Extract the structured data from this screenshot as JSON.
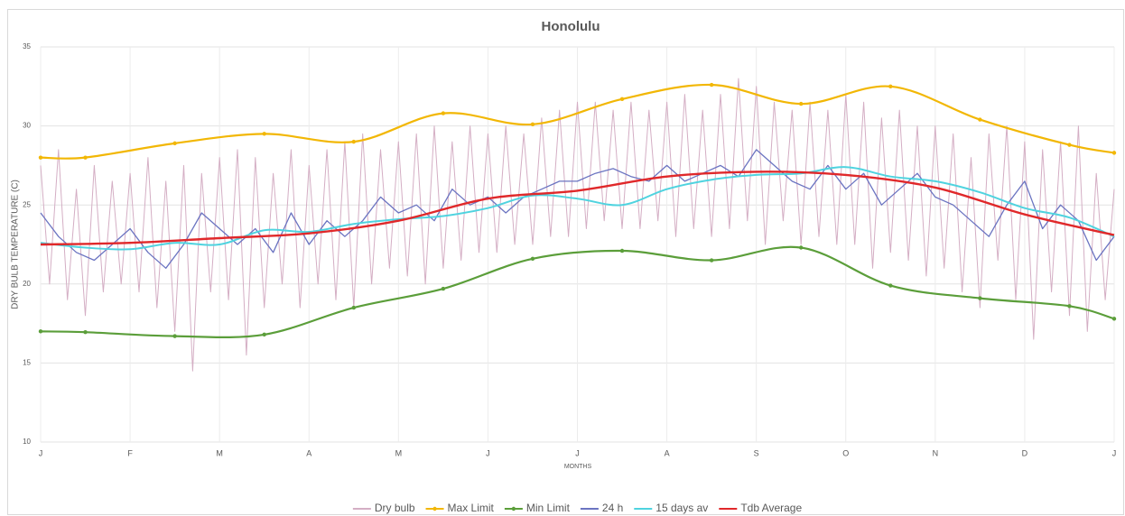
{
  "chart_data": {
    "type": "line",
    "title": "Honolulu",
    "ylabel": "DRY BULB TEMPERATURE (C)",
    "xlabel": "MONTHS",
    "xlim": [
      0,
      12
    ],
    "xticks": [
      {
        "value": 0,
        "label": "J"
      },
      {
        "value": 1,
        "label": "F"
      },
      {
        "value": 2,
        "label": "M"
      },
      {
        "value": 3,
        "label": "A"
      },
      {
        "value": 4,
        "label": "M"
      },
      {
        "value": 5,
        "label": "J"
      },
      {
        "value": 6,
        "label": "J"
      },
      {
        "value": 7,
        "label": "A"
      },
      {
        "value": 8,
        "label": "S"
      },
      {
        "value": 9,
        "label": "O"
      },
      {
        "value": 10,
        "label": "N"
      },
      {
        "value": 11,
        "label": "D"
      },
      {
        "value": 12,
        "label": "J"
      }
    ],
    "ylim": [
      10,
      35
    ],
    "yticks": [
      10,
      15,
      20,
      25,
      30,
      35
    ],
    "grid": true,
    "legend": "bottom",
    "series": [
      {
        "name": "Dry bulb",
        "color": "#d4aec4",
        "width": 1,
        "smooth": false,
        "markers": false,
        "x": [
          0,
          0.1,
          0.2,
          0.3,
          0.4,
          0.5,
          0.6,
          0.7,
          0.8,
          0.9,
          1,
          1.1,
          1.2,
          1.3,
          1.4,
          1.5,
          1.6,
          1.7,
          1.8,
          1.9,
          2,
          2.1,
          2.2,
          2.3,
          2.4,
          2.5,
          2.6,
          2.7,
          2.8,
          2.9,
          3,
          3.1,
          3.2,
          3.3,
          3.4,
          3.5,
          3.6,
          3.7,
          3.8,
          3.9,
          4,
          4.1,
          4.2,
          4.3,
          4.4,
          4.5,
          4.6,
          4.7,
          4.8,
          4.9,
          5,
          5.1,
          5.2,
          5.3,
          5.4,
          5.5,
          5.6,
          5.7,
          5.8,
          5.9,
          6,
          6.1,
          6.2,
          6.3,
          6.4,
          6.5,
          6.6,
          6.7,
          6.8,
          6.9,
          7,
          7.1,
          7.2,
          7.3,
          7.4,
          7.5,
          7.6,
          7.7,
          7.8,
          7.9,
          8,
          8.1,
          8.2,
          8.3,
          8.4,
          8.5,
          8.6,
          8.7,
          8.8,
          8.9,
          9,
          9.1,
          9.2,
          9.3,
          9.4,
          9.5,
          9.6,
          9.7,
          9.8,
          9.9,
          10,
          10.1,
          10.2,
          10.3,
          10.4,
          10.5,
          10.6,
          10.7,
          10.8,
          10.9,
          11,
          11.1,
          11.2,
          11.3,
          11.4,
          11.5,
          11.6,
          11.7,
          11.8,
          11.9,
          12
        ],
        "values": [
          27.5,
          20.0,
          28.5,
          19.0,
          26.0,
          18.0,
          27.5,
          19.5,
          26.5,
          20.0,
          27.0,
          19.5,
          28.0,
          18.5,
          26.5,
          17.0,
          27.5,
          14.5,
          27.0,
          19.5,
          28.0,
          19.0,
          28.5,
          15.5,
          28.0,
          18.5,
          27.0,
          20.0,
          28.5,
          18.5,
          27.5,
          20.0,
          28.5,
          19.0,
          29.0,
          18.5,
          29.5,
          20.0,
          28.5,
          21.0,
          29.0,
          20.5,
          29.5,
          20.0,
          30.0,
          21.0,
          29.0,
          21.5,
          30.0,
          22.0,
          29.5,
          22.0,
          30.0,
          22.5,
          29.5,
          22.5,
          30.5,
          23.0,
          31.0,
          23.0,
          31.5,
          23.5,
          31.5,
          24.0,
          31.0,
          23.5,
          31.5,
          23.5,
          31.0,
          24.0,
          31.5,
          23.0,
          32.0,
          23.5,
          31.0,
          23.0,
          32.0,
          23.5,
          33.0,
          24.0,
          32.5,
          22.5,
          31.5,
          24.0,
          31.0,
          22.5,
          31.5,
          23.0,
          31.0,
          22.5,
          32.0,
          22.5,
          31.5,
          21.0,
          30.5,
          22.0,
          31.0,
          21.5,
          30.0,
          20.5,
          30.0,
          21.0,
          29.5,
          19.5,
          28.0,
          18.5,
          29.5,
          21.5,
          30.0,
          19.0,
          29.0,
          16.5,
          28.5,
          19.5,
          29.0,
          18.0,
          30.0,
          17.0,
          27.0,
          19.0,
          26.0
        ]
      },
      {
        "name": "Max Limit",
        "color": "#f2b705",
        "width": 2.2,
        "smooth": true,
        "markers": true,
        "x": [
          0,
          0.5,
          1.5,
          2.5,
          3.5,
          4.5,
          5.5,
          6.5,
          7.5,
          8.5,
          9.5,
          10.5,
          11.5,
          12
        ],
        "values": [
          28.0,
          28.0,
          28.9,
          29.5,
          29.0,
          30.8,
          30.1,
          31.7,
          32.6,
          31.4,
          32.5,
          30.4,
          28.8,
          28.3
        ]
      },
      {
        "name": "Min Limit",
        "color": "#5b9e3a",
        "width": 2.2,
        "smooth": true,
        "markers": true,
        "x": [
          0,
          0.5,
          1.5,
          2.5,
          3.5,
          4.5,
          5.5,
          6.5,
          7.5,
          8.5,
          9.5,
          10.5,
          11.5,
          12
        ],
        "values": [
          17.0,
          16.95,
          16.7,
          16.8,
          18.5,
          19.7,
          21.6,
          22.1,
          21.5,
          22.3,
          19.9,
          19.1,
          18.6,
          17.8
        ]
      },
      {
        "name": "24 h",
        "color": "#6b74c1",
        "width": 1.3,
        "smooth": false,
        "markers": false,
        "x": [
          0,
          0.2,
          0.4,
          0.6,
          0.8,
          1,
          1.2,
          1.4,
          1.6,
          1.8,
          2,
          2.2,
          2.4,
          2.6,
          2.8,
          3,
          3.2,
          3.4,
          3.6,
          3.8,
          4,
          4.2,
          4.4,
          4.6,
          4.8,
          5,
          5.2,
          5.4,
          5.6,
          5.8,
          6,
          6.2,
          6.4,
          6.6,
          6.8,
          7,
          7.2,
          7.4,
          7.6,
          7.8,
          8,
          8.2,
          8.4,
          8.6,
          8.8,
          9,
          9.2,
          9.4,
          9.6,
          9.8,
          10,
          10.2,
          10.4,
          10.6,
          10.8,
          11,
          11.2,
          11.4,
          11.6,
          11.8,
          12
        ],
        "values": [
          24.5,
          23.0,
          22.0,
          21.5,
          22.5,
          23.5,
          22.0,
          21.0,
          22.5,
          24.5,
          23.5,
          22.5,
          23.5,
          22.0,
          24.5,
          22.5,
          24.0,
          23.0,
          24.0,
          25.5,
          24.5,
          25.0,
          24.0,
          26.0,
          25.0,
          25.5,
          24.5,
          25.5,
          26.0,
          26.5,
          26.5,
          27.0,
          27.3,
          26.8,
          26.5,
          27.5,
          26.5,
          27.0,
          27.5,
          26.8,
          28.5,
          27.5,
          26.5,
          26.0,
          27.5,
          26.0,
          27.0,
          25.0,
          26.0,
          27.0,
          25.5,
          25.0,
          24.0,
          23.0,
          25.0,
          26.5,
          23.5,
          25.0,
          24.0,
          21.5,
          23.0
        ]
      },
      {
        "name": "15 days av",
        "color": "#4fd3df",
        "width": 2,
        "smooth": true,
        "markers": false,
        "x": [
          0,
          0.5,
          1,
          1.5,
          2,
          2.5,
          3,
          3.5,
          4,
          4.5,
          5,
          5.5,
          6,
          6.5,
          7,
          7.5,
          8,
          8.5,
          9,
          9.5,
          10,
          10.5,
          11,
          11.5,
          12
        ],
        "values": [
          22.6,
          22.3,
          22.2,
          22.6,
          22.5,
          23.4,
          23.3,
          23.8,
          24.1,
          24.3,
          24.8,
          25.6,
          25.4,
          25.0,
          26.0,
          26.6,
          26.9,
          27.0,
          27.4,
          26.8,
          26.5,
          25.8,
          24.8,
          24.2,
          23.0
        ]
      },
      {
        "name": "Tdb Average",
        "color": "#e0282a",
        "width": 2.4,
        "smooth": true,
        "markers": false,
        "x": [
          0,
          1,
          2,
          3,
          4,
          5,
          6,
          7,
          8,
          9,
          10,
          11,
          12
        ],
        "values": [
          22.5,
          22.6,
          22.9,
          23.2,
          24.0,
          25.4,
          25.9,
          26.8,
          27.1,
          26.9,
          26.1,
          24.4,
          23.1
        ]
      }
    ]
  }
}
